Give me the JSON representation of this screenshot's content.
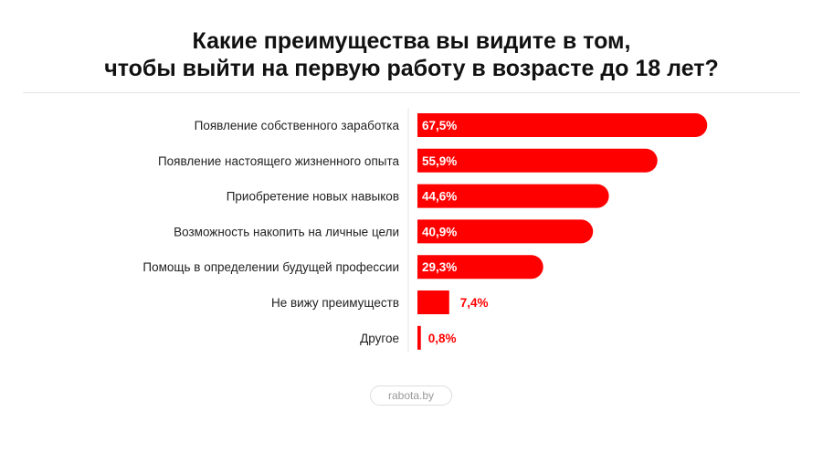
{
  "chart_data": {
    "type": "bar",
    "orientation": "horizontal",
    "title_lines": [
      "Какие преимущества вы видите в том,",
      "чтобы выйти на первую работу в возрасте до 18 лет?"
    ],
    "categories": [
      "Появление собственного заработка",
      "Появление настоящего жизненного опыта",
      "Приобретение новых навыков",
      "Возможность накопить на личные цели",
      "Помощь в определении будущей профессии",
      "Не вижу преимуществ",
      "Другое"
    ],
    "values": [
      67.5,
      55.9,
      44.6,
      40.9,
      29.3,
      7.4,
      0.8
    ],
    "labels": [
      "67,5%",
      "55,9%",
      "44,6%",
      "40,9%",
      "29,3%",
      "7,4%",
      "0,8%"
    ],
    "unit": "%",
    "xlim": [
      0,
      100
    ],
    "grid": false,
    "legend": "none",
    "bar_color": "#ff0000"
  },
  "footer": {
    "source": "rabota.by"
  }
}
